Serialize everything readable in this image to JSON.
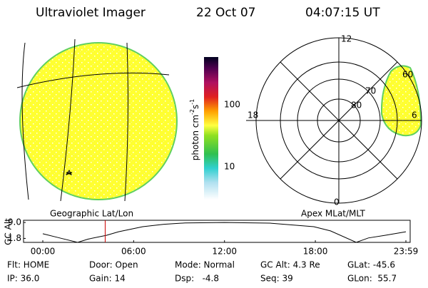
{
  "header": {
    "instrument": "Ultraviolet Imager",
    "date": "22 Oct 07",
    "time": "04:07:15 UT"
  },
  "colorbar": {
    "label": "photon cm",
    "exp1": "-2",
    "unit2": "s",
    "exp2": "-1",
    "ticks": [
      "100",
      "10"
    ]
  },
  "polar": {
    "mlt_labels": [
      "12",
      "18",
      "6",
      "0"
    ],
    "mlat_labels": [
      "60",
      "70",
      "80"
    ]
  },
  "panel_titles": {
    "left": "Geographic Lat/Lon",
    "right": "Apex MLat/MLT"
  },
  "chart_data": {
    "type": "line",
    "ylabel": "GC Alt",
    "x": [
      0,
      1,
      2.3,
      3,
      4.2,
      5,
      6.6,
      8,
      9.4,
      12,
      15,
      17.9,
      19,
      20.7,
      21.5,
      22.6,
      23.98
    ],
    "values": [
      3.9,
      2.2,
      0,
      1.5,
      3.2,
      4.8,
      7.1,
      8.2,
      8.8,
      9.0,
      8.7,
      7.1,
      5.2,
      0,
      2.0,
      3.2,
      4.8
    ],
    "color": "#000000",
    "current_time": 4.12,
    "current_color": "#cc0000",
    "xlim": [
      0,
      23.98
    ],
    "ylim": [
      0,
      10
    ],
    "xticks": [
      {
        "value": 0,
        "label": "00:00"
      },
      {
        "value": 6,
        "label": "06:00"
      },
      {
        "value": 12,
        "label": "12:00"
      },
      {
        "value": 18,
        "label": "18:00"
      },
      {
        "value": 23.98,
        "label": "23:59"
      }
    ],
    "yticks": [
      {
        "value": 1.8,
        "label": "1.8"
      },
      {
        "value": 9.0,
        "label": "9.0"
      }
    ]
  },
  "info": [
    [
      "Flt: HOME",
      "Door: Open",
      "Mode: Normal",
      "GC Alt: 4.3 Re",
      "GLat: -45.6"
    ],
    [
      "IP: 36.0",
      "Gain: 14",
      "Dsp:   -4.8",
      "Seq: 39",
      "GLon:  55.7"
    ]
  ]
}
